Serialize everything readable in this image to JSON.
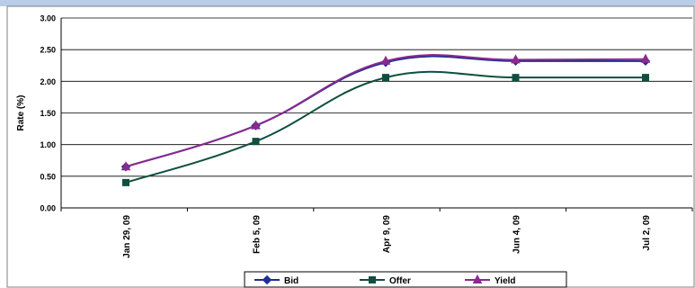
{
  "chart_data": {
    "type": "line",
    "title": "",
    "xlabel": "",
    "ylabel": "Rate (%)",
    "ylim": [
      0,
      3
    ],
    "yticks": [
      "0.00",
      "0.50",
      "1.00",
      "1.50",
      "2.00",
      "2.50",
      "3.00"
    ],
    "grid": true,
    "legend_position": "bottom",
    "categories": [
      "Jan 29, 09",
      "Feb 5, 09",
      "Apr 9, 09",
      "Jun 4, 09",
      "Jul 2, 09"
    ],
    "series": [
      {
        "name": "Bid",
        "color": "#1f2f8f",
        "marker": "diamond",
        "values": [
          0.65,
          1.3,
          2.3,
          2.32,
          2.32
        ]
      },
      {
        "name": "Offer",
        "color": "#0f4f3f",
        "marker": "square",
        "values": [
          0.4,
          1.05,
          2.06,
          2.06,
          2.06
        ]
      },
      {
        "name": "Yield",
        "color": "#8a2a8f",
        "marker": "triangle",
        "values": [
          0.65,
          1.3,
          2.32,
          2.34,
          2.35
        ]
      }
    ]
  },
  "header_bar_color": "#b9cde9"
}
